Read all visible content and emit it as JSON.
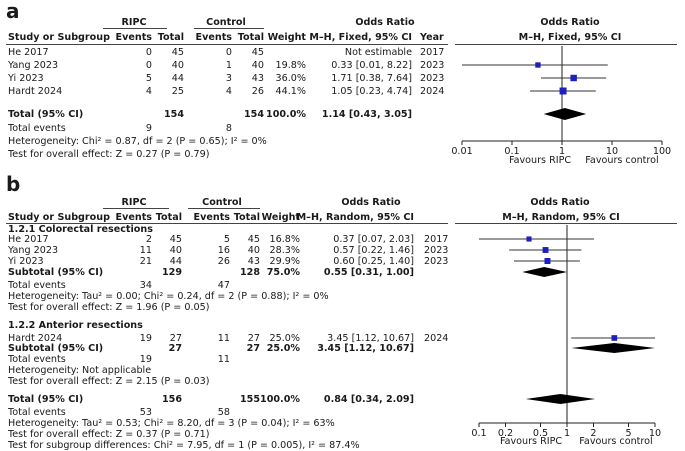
{
  "panel_a": {
    "letter": "a",
    "group_headers": {
      "exp": "RIPC",
      "ctrl": "Control",
      "or": "Odds Ratio",
      "or_plot": "Odds Ratio"
    },
    "columns": {
      "study": "Study or Subgroup",
      "events": "Events",
      "total": "Total",
      "events2": "Events",
      "total2": "Total",
      "weight": "Weight",
      "method": "M–H, Fixed, 95% CI",
      "year": "Year",
      "plot_method": "M–H, Fixed, 95% CI"
    },
    "rows": [
      {
        "study": "He 2017",
        "e1": "0",
        "t1": "45",
        "e2": "0",
        "t2": "45",
        "weight": "",
        "ci": "Not estimable",
        "year": "2017"
      },
      {
        "study": "Yang 2023",
        "e1": "0",
        "t1": "40",
        "e2": "1",
        "t2": "40",
        "weight": "19.8%",
        "ci": "0.33 [0.01, 8.22]",
        "year": "2023"
      },
      {
        "study": "Yi 2023",
        "e1": "5",
        "t1": "44",
        "e2": "3",
        "t2": "43",
        "weight": "36.0%",
        "ci": "1.71 [0.38, 7.64]",
        "year": "2023"
      },
      {
        "study": "Hardt 2024",
        "e1": "4",
        "t1": "25",
        "e2": "4",
        "t2": "26",
        "weight": "44.1%",
        "ci": "1.05 [0.23, 4.74]",
        "year": "2024"
      }
    ],
    "total": {
      "label": "Total (95% CI)",
      "t1": "154",
      "t2": "154",
      "weight": "100.0%",
      "ci": "1.14 [0.43, 3.05]"
    },
    "total_events": {
      "label": "Total events",
      "e1": "9",
      "e2": "8"
    },
    "heterogeneity": "Heterogeneity: Chi² = 0.87, df = 2 (P = 0.65); I² = 0%",
    "overall_effect": "Test for overall effect: Z = 0.27 (P = 0.79)",
    "axis": {
      "ticks": [
        "0.01",
        "0.1",
        "1",
        "10",
        "100"
      ],
      "favours_left": "Favours RIPC",
      "favours_right": "Favours control"
    }
  },
  "panel_b": {
    "letter": "b",
    "group_headers": {
      "exp": "RIPC",
      "ctrl": "Control",
      "or": "Odds Ratio",
      "or_plot": "Odds Ratio"
    },
    "columns": {
      "study": "Study or Subgroup",
      "events": "Events",
      "total": "Total",
      "events2": "Events",
      "total2": "Total",
      "weight": "Weight",
      "method": "M–H, Random, 95% CI",
      "plot_method": "M–H, Random, 95% CI"
    },
    "subgroup1": {
      "title": "1.2.1 Colorectal resections",
      "rows": [
        {
          "study": "He 2017",
          "e1": "2",
          "t1": "45",
          "e2": "5",
          "t2": "45",
          "weight": "16.8%",
          "ci": "0.37 [0.07, 2.03]",
          "year": "2017"
        },
        {
          "study": "Yang 2023",
          "e1": "11",
          "t1": "40",
          "e2": "16",
          "t2": "40",
          "weight": "28.3%",
          "ci": "0.57 [0.22, 1.46]",
          "year": "2023"
        },
        {
          "study": "Yi 2023",
          "e1": "21",
          "t1": "44",
          "e2": "26",
          "t2": "43",
          "weight": "29.9%",
          "ci": "0.60 [0.25, 1.40]",
          "year": "2023"
        }
      ],
      "subtotal": {
        "label": "Subtotal (95% CI)",
        "t1": "129",
        "t2": "128",
        "weight": "75.0%",
        "ci": "0.55 [0.31, 1.00]"
      },
      "total_events": {
        "label": "Total events",
        "e1": "34",
        "e2": "47"
      },
      "heterogeneity": "Heterogeneity: Tau² = 0.00; Chi² = 0.24, df = 2 (P = 0.88); I² = 0%",
      "overall_effect": "Test for overall effect: Z = 1.96 (P = 0.05)"
    },
    "subgroup2": {
      "title": "1.2.2 Anterior resections",
      "rows": [
        {
          "study": "Hardt 2024",
          "e1": "19",
          "t1": "27",
          "e2": "11",
          "t2": "27",
          "weight": "25.0%",
          "ci": "3.45 [1.12, 10.67]",
          "year": "2024"
        }
      ],
      "subtotal": {
        "label": "Subtotal (95% CI)",
        "t1": "27",
        "t2": "27",
        "weight": "25.0%",
        "ci": "3.45 [1.12, 10.67]"
      },
      "total_events": {
        "label": "Total events",
        "e1": "19",
        "e2": "11"
      },
      "heterogeneity": "Heterogeneity: Not applicable",
      "overall_effect": "Test for overall effect: Z = 2.15 (P = 0.03)"
    },
    "total": {
      "label": "Total (95% CI)",
      "t1": "156",
      "t2": "155",
      "weight": "100.0%",
      "ci": "0.84 [0.34, 2.09]"
    },
    "total_events": {
      "label": "Total events",
      "e1": "53",
      "e2": "58"
    },
    "heterogeneity": "Heterogeneity: Tau² = 0.53; Chi² = 8.20, df = 3 (P = 0.04); I² = 63%",
    "overall_effect": "Test for overall effect: Z = 0.37 (P = 0.71)",
    "subgroup_diff": "Test for subgroup differences: Chi² = 7.95, df = 1 (P = 0.005), I² = 87.4%",
    "axis": {
      "ticks": [
        "0.1",
        "0.2",
        "0.5",
        "1",
        "2",
        "5",
        "10"
      ],
      "favours_left": "Favours RIPC",
      "favours_right": "Favours control"
    }
  },
  "chart_data": [
    {
      "type": "forest",
      "scale": "log",
      "xlim": [
        0.01,
        100
      ],
      "studies": [
        {
          "name": "He 2017",
          "or": null,
          "lo": null,
          "hi": null,
          "weight": 0
        },
        {
          "name": "Yang 2023",
          "or": 0.33,
          "lo": 0.01,
          "hi": 8.22,
          "weight": 19.8
        },
        {
          "name": "Yi 2023",
          "or": 1.71,
          "lo": 0.38,
          "hi": 7.64,
          "weight": 36.0
        },
        {
          "name": "Hardt 2024",
          "or": 1.05,
          "lo": 0.23,
          "hi": 4.74,
          "weight": 44.1
        }
      ],
      "pooled": {
        "name": "Total (95% CI)",
        "or": 1.14,
        "lo": 0.43,
        "hi": 3.05
      },
      "color_marker": "#1f1fbf"
    },
    {
      "type": "forest",
      "scale": "log",
      "xlim": [
        0.1,
        10
      ],
      "studies": [
        {
          "name": "He 2017",
          "or": 0.37,
          "lo": 0.07,
          "hi": 2.03,
          "weight": 16.8
        },
        {
          "name": "Yang 2023",
          "or": 0.57,
          "lo": 0.22,
          "hi": 1.46,
          "weight": 28.3
        },
        {
          "name": "Yi 2023",
          "or": 0.6,
          "lo": 0.25,
          "hi": 1.4,
          "weight": 29.9
        },
        {
          "name": "Hardt 2024",
          "or": 3.45,
          "lo": 1.12,
          "hi": 10.67,
          "weight": 25.0
        }
      ],
      "subtotals": [
        {
          "name": "Subtotal (95% CI)",
          "or": 0.55,
          "lo": 0.31,
          "hi": 1.0
        },
        {
          "name": "Subtotal (95% CI)",
          "or": 3.45,
          "lo": 1.12,
          "hi": 10.67
        }
      ],
      "pooled": {
        "name": "Total (95% CI)",
        "or": 0.84,
        "lo": 0.34,
        "hi": 2.09
      },
      "color_marker": "#1f1fbf"
    }
  ]
}
